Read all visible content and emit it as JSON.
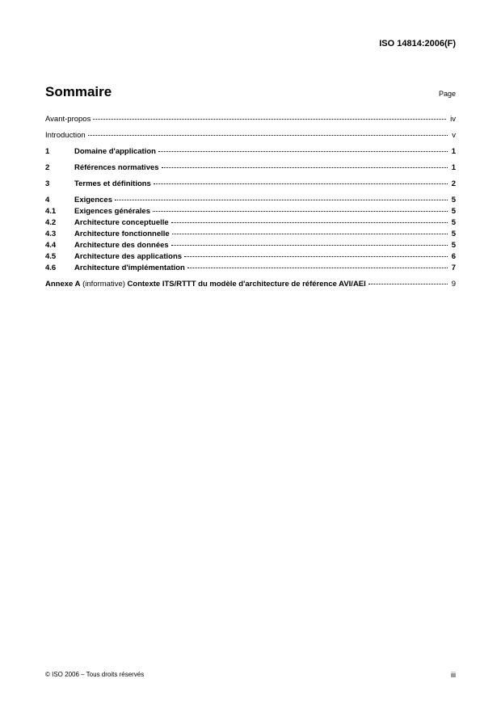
{
  "header": {
    "doc_id": "ISO 14814:2006(F)"
  },
  "title_row": {
    "title": "Sommaire",
    "page_label": "Page"
  },
  "toc": [
    {
      "num": "",
      "title": "Avant-propos",
      "page": "iv",
      "spaced": false,
      "bold": false
    },
    {
      "num": "",
      "title": "Introduction",
      "page": "v",
      "spaced": true,
      "bold": false
    },
    {
      "num": "1",
      "title": "Domaine d'application",
      "page": "1",
      "spaced": true,
      "bold": true
    },
    {
      "num": "2",
      "title": "Références normatives",
      "page": "1",
      "spaced": true,
      "bold": true
    },
    {
      "num": "3",
      "title": "Termes et définitions",
      "page": "2",
      "spaced": true,
      "bold": true
    },
    {
      "num": "4",
      "title": "Exigences",
      "page": "5",
      "spaced": true,
      "bold": true
    },
    {
      "num": "4.1",
      "title": "Exigences générales",
      "page": "5",
      "spaced": false,
      "bold": true
    },
    {
      "num": "4.2",
      "title": "Architecture conceptuelle",
      "page": "5",
      "spaced": false,
      "bold": true
    },
    {
      "num": "4.3",
      "title": "Architecture fonctionnelle",
      "page": "5",
      "spaced": false,
      "bold": true
    },
    {
      "num": "4.4",
      "title": "Architecture des données",
      "page": "5",
      "spaced": false,
      "bold": true
    },
    {
      "num": "4.5",
      "title": "Architecture des applications",
      "page": "6",
      "spaced": false,
      "bold": true
    },
    {
      "num": "4.6",
      "title": "Architecture d'implémentation",
      "page": "7",
      "spaced": false,
      "bold": true
    }
  ],
  "annex": {
    "prefix": "Annexe A",
    "info": " (informative) ",
    "title": "Contexte ITS/RTTT du modèle d'architecture de référence AVI/AEI",
    "page": "9"
  },
  "footer": {
    "copyright": "© ISO 2006 – Tous droits réservés",
    "page_num": "iii"
  }
}
